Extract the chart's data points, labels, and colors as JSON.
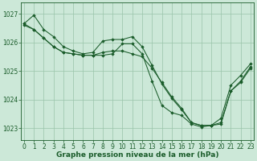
{
  "background_color": "#cce8d8",
  "grid_color": "#99c4aa",
  "line_color": "#1a5c2a",
  "marker_color": "#1a5c2a",
  "xlabel": "Graphe pression niveau de la mer (hPa)",
  "xlabel_fontsize": 6.5,
  "tick_fontsize": 5.5,
  "ylim": [
    1022.6,
    1027.4
  ],
  "xlim": [
    -0.3,
    23.3
  ],
  "yticks": [
    1023,
    1024,
    1025,
    1026,
    1027
  ],
  "xticks": [
    0,
    1,
    2,
    3,
    4,
    5,
    6,
    7,
    8,
    9,
    10,
    11,
    12,
    13,
    14,
    15,
    16,
    17,
    18,
    19,
    20,
    21,
    22,
    23
  ],
  "series": [
    [
      1026.65,
      1026.95,
      1026.45,
      1026.2,
      1025.85,
      1025.7,
      1025.6,
      1025.65,
      1026.05,
      1026.1,
      1026.1,
      1026.2,
      1025.85,
      1025.2,
      1024.55,
      1024.05,
      1023.65,
      1023.2,
      1023.1,
      1023.1,
      1023.35,
      1024.5,
      1024.85,
      1025.25
    ],
    [
      1026.65,
      1026.45,
      1026.15,
      1025.85,
      1025.65,
      1025.6,
      1025.55,
      1025.55,
      1025.65,
      1025.7,
      1025.7,
      1025.6,
      1025.5,
      1025.1,
      1024.6,
      1024.1,
      1023.7,
      1023.2,
      1023.1,
      1023.1,
      1023.2,
      1024.3,
      1024.65,
      1025.15
    ],
    [
      1026.6,
      1026.45,
      1026.15,
      1025.85,
      1025.65,
      1025.6,
      1025.55,
      1025.55,
      1025.55,
      1025.6,
      1025.95,
      1025.95,
      1025.6,
      1024.65,
      1023.8,
      1023.55,
      1023.45,
      1023.15,
      1023.05,
      1023.1,
      1023.15,
      1024.3,
      1024.6,
      1025.1
    ]
  ]
}
